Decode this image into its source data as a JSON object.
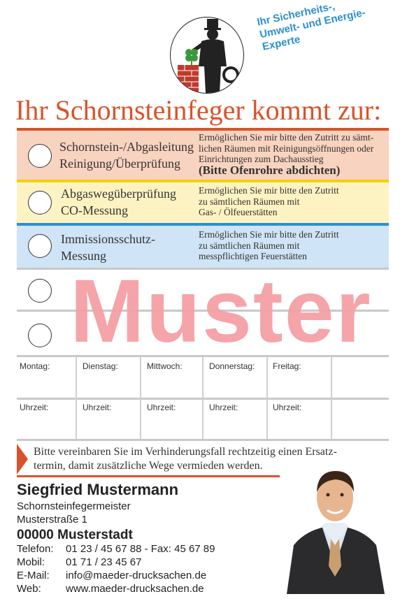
{
  "header": {
    "tagline_lines": [
      "Ihr Sicherheits-,",
      "Umwelt- und Energie-",
      "Experte"
    ],
    "title": "Ihr Schornsteinfeger kommt zur:"
  },
  "services": [
    {
      "name_lines": [
        "Schornstein-/Abgasleitung",
        "Reinigung/Überprüfung"
      ],
      "desc_lines": [
        "Ermöglichen Sie mir bitte den Zutritt zu sämt-",
        "lichen Räumen mit Reinigungsöffnungen oder",
        "Einrichtungen zum Dachausstieg"
      ],
      "desc_bold": "(Bitte Ofenrohre abdichten)",
      "color": "#f8d3bf",
      "accent": "#d9532a"
    },
    {
      "name_lines": [
        "Abgaswegüberprüfung",
        "CO-Messung"
      ],
      "desc_lines": [
        "Ermöglichen Sie mir bitte den Zutritt",
        "zu sämtlichen Räumen mit",
        "Gas- / Ölfeuerstätten"
      ],
      "color": "#fdf3c2",
      "accent": "#f5d000"
    },
    {
      "name_lines": [
        "Immissionsschutz-",
        "Messung"
      ],
      "desc_lines": [
        "Ermöglichen Sie mir bitte den Zutritt",
        "zu sämtlichen Räumen mit",
        "messpflichtigen Feuerstätten"
      ],
      "color": "#cfe4f6",
      "accent": "#2a8fd0"
    }
  ],
  "watermark": "Muster",
  "schedule": {
    "days": [
      "Montag:",
      "Dienstag:",
      "Mittwoch:",
      "Donnerstag:",
      "Freitag:"
    ],
    "time_label": "Uhrzeit:"
  },
  "notice_lines": [
    "Bitte vereinbaren Sie im Verhinderungsfall rechtzeitig einen Ersatz-",
    "termin, damit zusätzliche Wege vermieden werden."
  ],
  "contact": {
    "name": "Siegfried Mustermann",
    "profession": "Schornsteinfegermeister",
    "street": "Musterstraße 1",
    "city": "00000 Musterstadt",
    "phone_label": "Telefon:",
    "phone": "01 23 / 45 67 88 - Fax:  45 67 89",
    "mobile_label": "Mobil:",
    "mobile": "01 71 / 23 45 67",
    "email_label": "E-Mail:",
    "email": "info@maeder-drucksachen.de",
    "web_label": "Web:",
    "web": "www.maeder-drucksachen.de"
  }
}
